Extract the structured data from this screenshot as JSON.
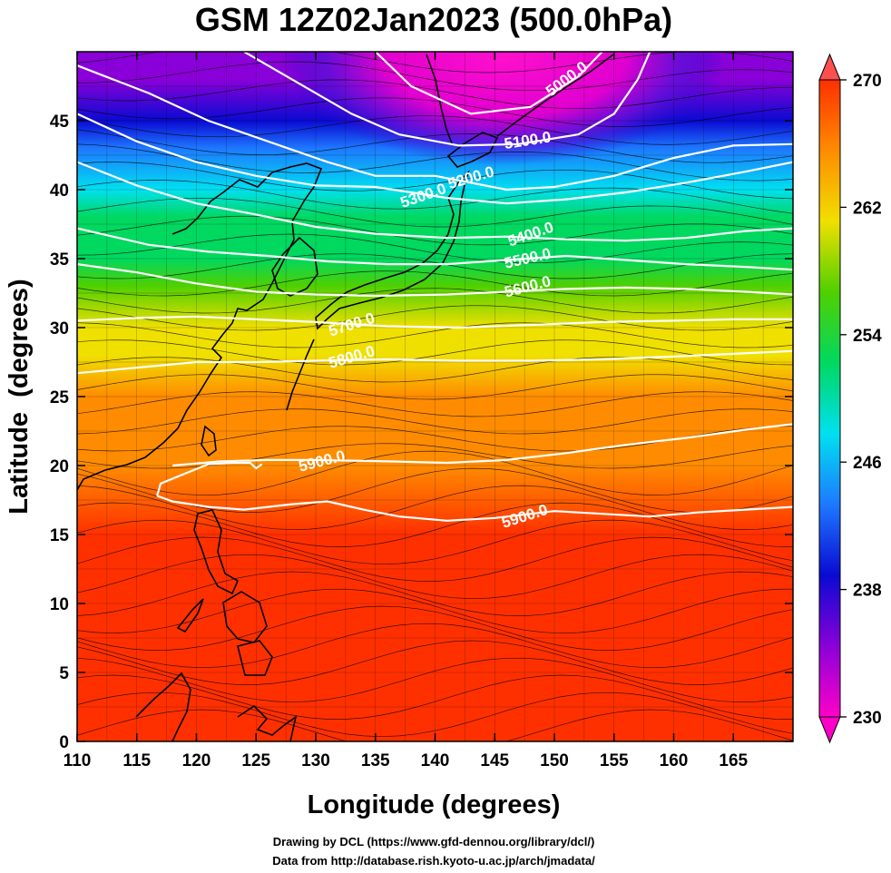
{
  "title": "GSM 12Z02Jan2023 (500.0hPa)",
  "footer": {
    "line1": "Drawing by DCL (https://www.gfd-dennou.org/library/dcl/)",
    "line2": "Data from http://database.rish.kyoto-u.ac.jp/arch/jmadata/"
  },
  "chart_data": {
    "type": "heatmap",
    "title": "GSM 12Z02Jan2023 (500.0hPa)",
    "xlabel": "Longitude (degrees)",
    "ylabel": "Latitude  (degrees)",
    "xlim": [
      110,
      170
    ],
    "ylim": [
      0,
      50
    ],
    "xticks": [
      110,
      115,
      120,
      125,
      130,
      135,
      140,
      145,
      150,
      155,
      160,
      165
    ],
    "yticks": [
      0,
      5,
      10,
      15,
      20,
      25,
      30,
      35,
      40,
      45
    ],
    "grid": true,
    "shading_variable": "temperature (K)",
    "colorbar": {
      "min": 230,
      "max": 270,
      "ticks": [
        230,
        238,
        246,
        254,
        262,
        270
      ],
      "colors": [
        "#ff00c8",
        "#8a00d8",
        "#0a0ad2",
        "#1e78ff",
        "#00e0f0",
        "#00d860",
        "#50d000",
        "#f0e000",
        "#ff8c00",
        "#ff3000"
      ],
      "extend": "both"
    },
    "temperature_zonal_profile": {
      "lat": [
        0,
        5,
        10,
        15,
        20,
        25,
        28,
        30,
        33,
        35,
        38,
        40,
        43,
        45,
        48,
        50
      ],
      "temp": [
        268,
        268,
        268,
        268,
        267,
        265,
        263,
        260,
        256,
        253,
        250,
        246,
        242,
        239,
        236,
        234
      ]
    },
    "contours": [
      {
        "label": "5000.0",
        "lon": [
          150,
          152
        ],
        "lat": [
          47.4,
          48.7
        ],
        "points": [
          [
            135,
            50
          ],
          [
            138,
            47.5
          ],
          [
            143,
            45.5
          ],
          [
            148,
            46
          ],
          [
            152,
            48.2
          ],
          [
            154,
            50
          ]
        ]
      },
      {
        "label": "5100.0",
        "lon": [
          145.5,
          150
        ],
        "lat": [
          43.3,
          43.9
        ],
        "points": [
          [
            124,
            50
          ],
          [
            128,
            48
          ],
          [
            133,
            45.5
          ],
          [
            137,
            44
          ],
          [
            142,
            43.2
          ],
          [
            147,
            43.3
          ],
          [
            152,
            44
          ],
          [
            155,
            45.5
          ],
          [
            157,
            48
          ],
          [
            158,
            50
          ]
        ]
      },
      {
        "label": "5200.0",
        "lon": [
          141,
          145
        ],
        "lat": [
          40.4,
          41.4
        ],
        "points": [
          [
            110,
            49
          ],
          [
            116,
            47
          ],
          [
            121,
            45
          ],
          [
            126,
            43.5
          ],
          [
            131,
            42
          ],
          [
            135,
            41
          ],
          [
            140,
            41
          ],
          [
            146,
            40
          ],
          [
            150,
            40.2
          ],
          [
            155,
            41
          ],
          [
            160,
            42.3
          ],
          [
            165,
            43.2
          ],
          [
            170,
            43.3
          ]
        ]
      },
      {
        "label": "5300.0",
        "lon": [
          137,
          141
        ],
        "lat": [
          39,
          40.2
        ],
        "points": [
          [
            110,
            45.5
          ],
          [
            115,
            43.5
          ],
          [
            120,
            42
          ],
          [
            125,
            41
          ],
          [
            130,
            40.3
          ],
          [
            135,
            40.2
          ],
          [
            141,
            39.4
          ],
          [
            146,
            39
          ],
          [
            151,
            39.3
          ],
          [
            156,
            39.8
          ],
          [
            161,
            40.5
          ],
          [
            166,
            41.3
          ],
          [
            170,
            42
          ]
        ]
      },
      {
        "label": "5400.0",
        "lon": [
          146,
          150
        ],
        "lat": [
          36.2,
          37.4
        ],
        "points": [
          [
            110,
            42
          ],
          [
            115,
            40.3
          ],
          [
            120,
            39
          ],
          [
            125,
            38.2
          ],
          [
            130,
            37.3
          ],
          [
            135,
            36.8
          ],
          [
            141,
            36.5
          ],
          [
            146,
            36.6
          ],
          [
            151,
            36.4
          ],
          [
            156,
            36.3
          ],
          [
            161,
            36.5
          ],
          [
            166,
            37
          ],
          [
            170,
            37.2
          ]
        ]
      },
      {
        "label": "5500.0",
        "lon": [
          145.5,
          150
        ],
        "lat": [
          34.6,
          35.5
        ],
        "points": [
          [
            110,
            37.2
          ],
          [
            116,
            36
          ],
          [
            121,
            35.5
          ],
          [
            126,
            35.2
          ],
          [
            131,
            34.8
          ],
          [
            136,
            34.6
          ],
          [
            141,
            34.6
          ],
          [
            146,
            34.9
          ],
          [
            151,
            35.2
          ],
          [
            156,
            34.9
          ],
          [
            161,
            34.6
          ],
          [
            166,
            34.4
          ],
          [
            170,
            34.2
          ]
        ]
      },
      {
        "label": "5600.0",
        "lon": [
          145.5,
          150
        ],
        "lat": [
          32.5,
          33.5
        ],
        "points": [
          [
            110,
            34.6
          ],
          [
            115,
            34
          ],
          [
            120,
            33.2
          ],
          [
            125,
            32.6
          ],
          [
            130,
            32.4
          ],
          [
            135,
            32.3
          ],
          [
            141,
            32.4
          ],
          [
            146,
            32.6
          ],
          [
            151,
            32.8
          ],
          [
            156,
            32.9
          ],
          [
            161,
            32.8
          ],
          [
            166,
            32.6
          ],
          [
            170,
            32.4
          ]
        ]
      },
      {
        "label": "5700.0",
        "lon": [
          131,
          135
        ],
        "lat": [
          29.7,
          30.8
        ],
        "points": [
          [
            110,
            30.5
          ],
          [
            115,
            30.7
          ],
          [
            120,
            30.8
          ],
          [
            125,
            30.6
          ],
          [
            130,
            30.4
          ],
          [
            136,
            30.1
          ],
          [
            142,
            30
          ],
          [
            148,
            30.2
          ],
          [
            154,
            30.4
          ],
          [
            160,
            30.5
          ],
          [
            165,
            30.6
          ],
          [
            170,
            30.6
          ]
        ]
      },
      {
        "label": "5800.0",
        "lon": [
          131,
          135
        ],
        "lat": [
          27.4,
          28.4
        ],
        "points": [
          [
            110,
            26.7
          ],
          [
            115,
            27.1
          ],
          [
            120,
            27.5
          ],
          [
            125,
            27.5
          ],
          [
            130,
            27.6
          ],
          [
            136,
            27.7
          ],
          [
            142,
            27.6
          ],
          [
            148,
            27.6
          ],
          [
            154,
            27.7
          ],
          [
            160,
            27.9
          ],
          [
            165,
            28.1
          ],
          [
            170,
            28.3
          ]
        ]
      },
      {
        "label": "5900.0",
        "lon": [
          128,
          133
        ],
        "lat": [
          19.8,
          20.9
        ],
        "points": [
          [
            118,
            20
          ],
          [
            122,
            20.3
          ],
          [
            126,
            20.4
          ],
          [
            130,
            20.4
          ],
          [
            136,
            20.3
          ],
          [
            141,
            20.2
          ],
          [
            146,
            20.4
          ],
          [
            151,
            20.9
          ],
          [
            156,
            21.5
          ],
          [
            161,
            22
          ],
          [
            166,
            22.6
          ],
          [
            170,
            23
          ]
        ]
      },
      {
        "label": "5900.0",
        "lon": [
          145.5,
          149.5
        ],
        "lat": [
          15.8,
          16.9
        ],
        "points": [
          [
            116.7,
            17.8
          ],
          [
            118,
            17.4
          ],
          [
            121,
            17
          ],
          [
            124,
            16.8
          ],
          [
            128,
            17.2
          ],
          [
            131,
            17.4
          ],
          [
            134,
            16.8
          ],
          [
            137,
            16.3
          ],
          [
            141,
            16
          ],
          [
            145,
            16.2
          ],
          [
            150,
            16.7
          ],
          [
            154,
            16.5
          ],
          [
            158,
            16.3
          ],
          [
            162,
            16.6
          ],
          [
            166,
            16.8
          ],
          [
            170,
            17
          ]
        ]
      },
      {
        "label": "",
        "lon": [
          116.5,
          124
        ],
        "lat": [
          17.6,
          20.2
        ],
        "points": [
          [
            116.7,
            17.8
          ],
          [
            117,
            18.7
          ],
          [
            119,
            19.4
          ],
          [
            121,
            20.1
          ],
          [
            123,
            20.2
          ],
          [
            124.5,
            20.2
          ],
          [
            125,
            19.8
          ],
          [
            125.5,
            20.1
          ]
        ]
      }
    ],
    "wind": "streamlines, predominantly westerly (flowing west to east), stronger north of 20N"
  }
}
